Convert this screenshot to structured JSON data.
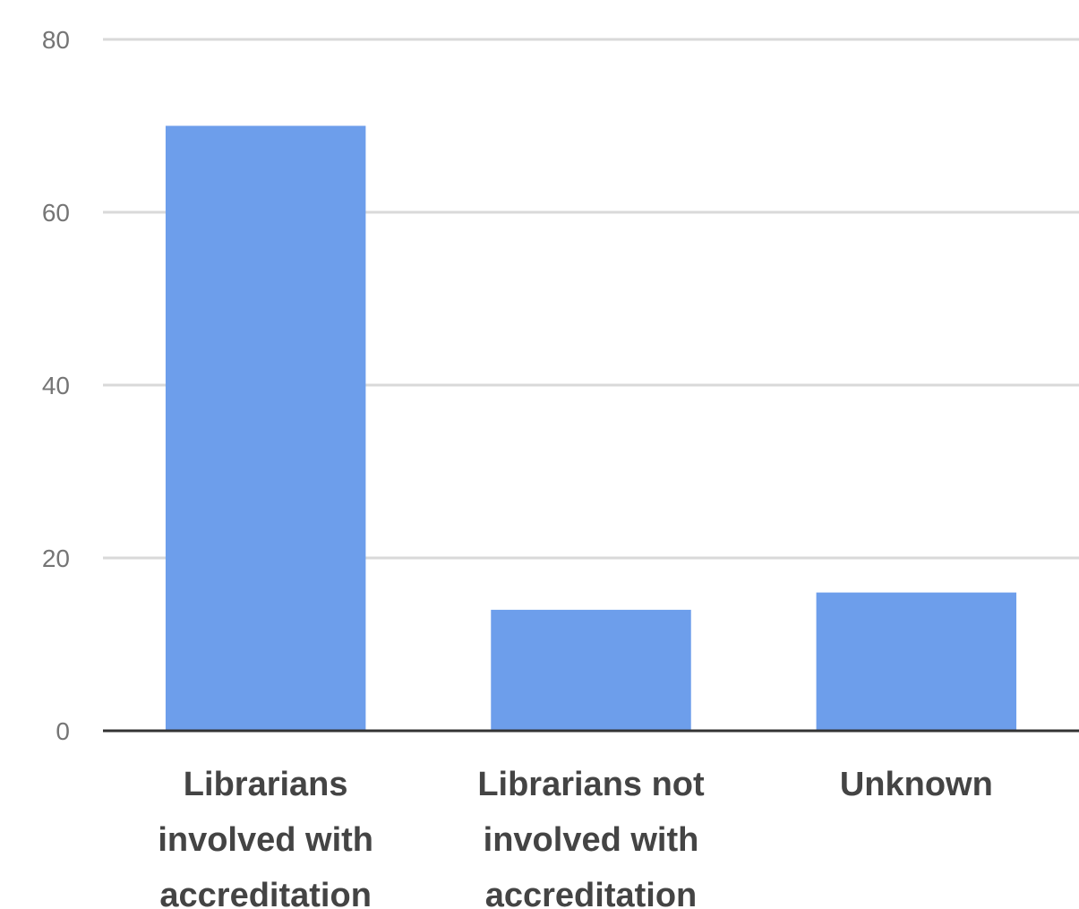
{
  "chart_data": {
    "type": "bar",
    "categories": [
      [
        "Librarians",
        "involved with",
        "accreditation"
      ],
      [
        "Librarians not",
        "involved with",
        "accreditation"
      ],
      [
        "Unknown"
      ]
    ],
    "values": [
      70,
      14,
      16
    ],
    "ylim": [
      0,
      80
    ],
    "yticks": [
      "0",
      "20",
      "40",
      "60",
      "80"
    ],
    "grid": true,
    "legend": "none",
    "colors": {
      "bar": "#6d9eeb",
      "grid": "#d9d9d9",
      "axis": "#333333"
    }
  }
}
